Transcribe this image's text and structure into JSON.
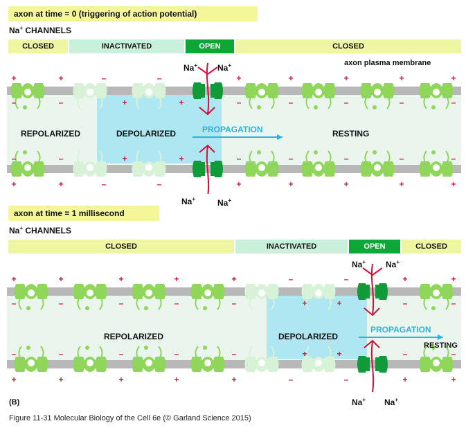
{
  "panel_top": {
    "title": "axon at time = 0 (triggering of action potential)",
    "channels_heading": "Na",
    "channels_sup": "+",
    "channels_rest": " CHANNELS",
    "bars": [
      {
        "label": "CLOSED",
        "state": "closed"
      },
      {
        "label": "INACTIVATED",
        "state": "inact"
      },
      {
        "label": "OPEN",
        "state": "open"
      },
      {
        "label": "CLOSED",
        "state": "closed"
      }
    ],
    "membrane_label": "axon plasma membrane",
    "regions": {
      "repolarized": "REPOLARIZED",
      "depolarized": "DEPOLARIZED",
      "resting": "RESTING"
    },
    "propagation": "PROPAGATION",
    "ion": "Na",
    "ion_sup": "+"
  },
  "panel_bottom": {
    "title": "axon at time = 1 millisecond",
    "channels_heading": "Na",
    "channels_sup": "+",
    "channels_rest": " CHANNELS",
    "bars": [
      {
        "label": "CLOSED",
        "state": "closed"
      },
      {
        "label": "INACTIVATED",
        "state": "inact"
      },
      {
        "label": "OPEN",
        "state": "open"
      },
      {
        "label": "CLOSED",
        "state": "closed"
      }
    ],
    "regions": {
      "repolarized": "REPOLARIZED",
      "depolarized": "DEPOLARIZED",
      "resting": "RESTING"
    },
    "propagation": "PROPAGATION",
    "ion": "Na",
    "ion_sup": "+"
  },
  "panel_letter": "(B)",
  "figure_caption": "Figure 11-31  Molecular Biology of the Cell 6e (© Garland Science 2015)",
  "colors": {
    "membrane": "#b8b8b8",
    "channel": "#8fd65a",
    "channel_inactivated": "#d8f2d8",
    "channel_open": "#109a3a",
    "depolarized": "#aee6f2",
    "cytosol": "#eaf5ee",
    "charge": "#d0103a",
    "arrow_red": "#d0103a",
    "arrow_blue": "#2bb3e0"
  }
}
